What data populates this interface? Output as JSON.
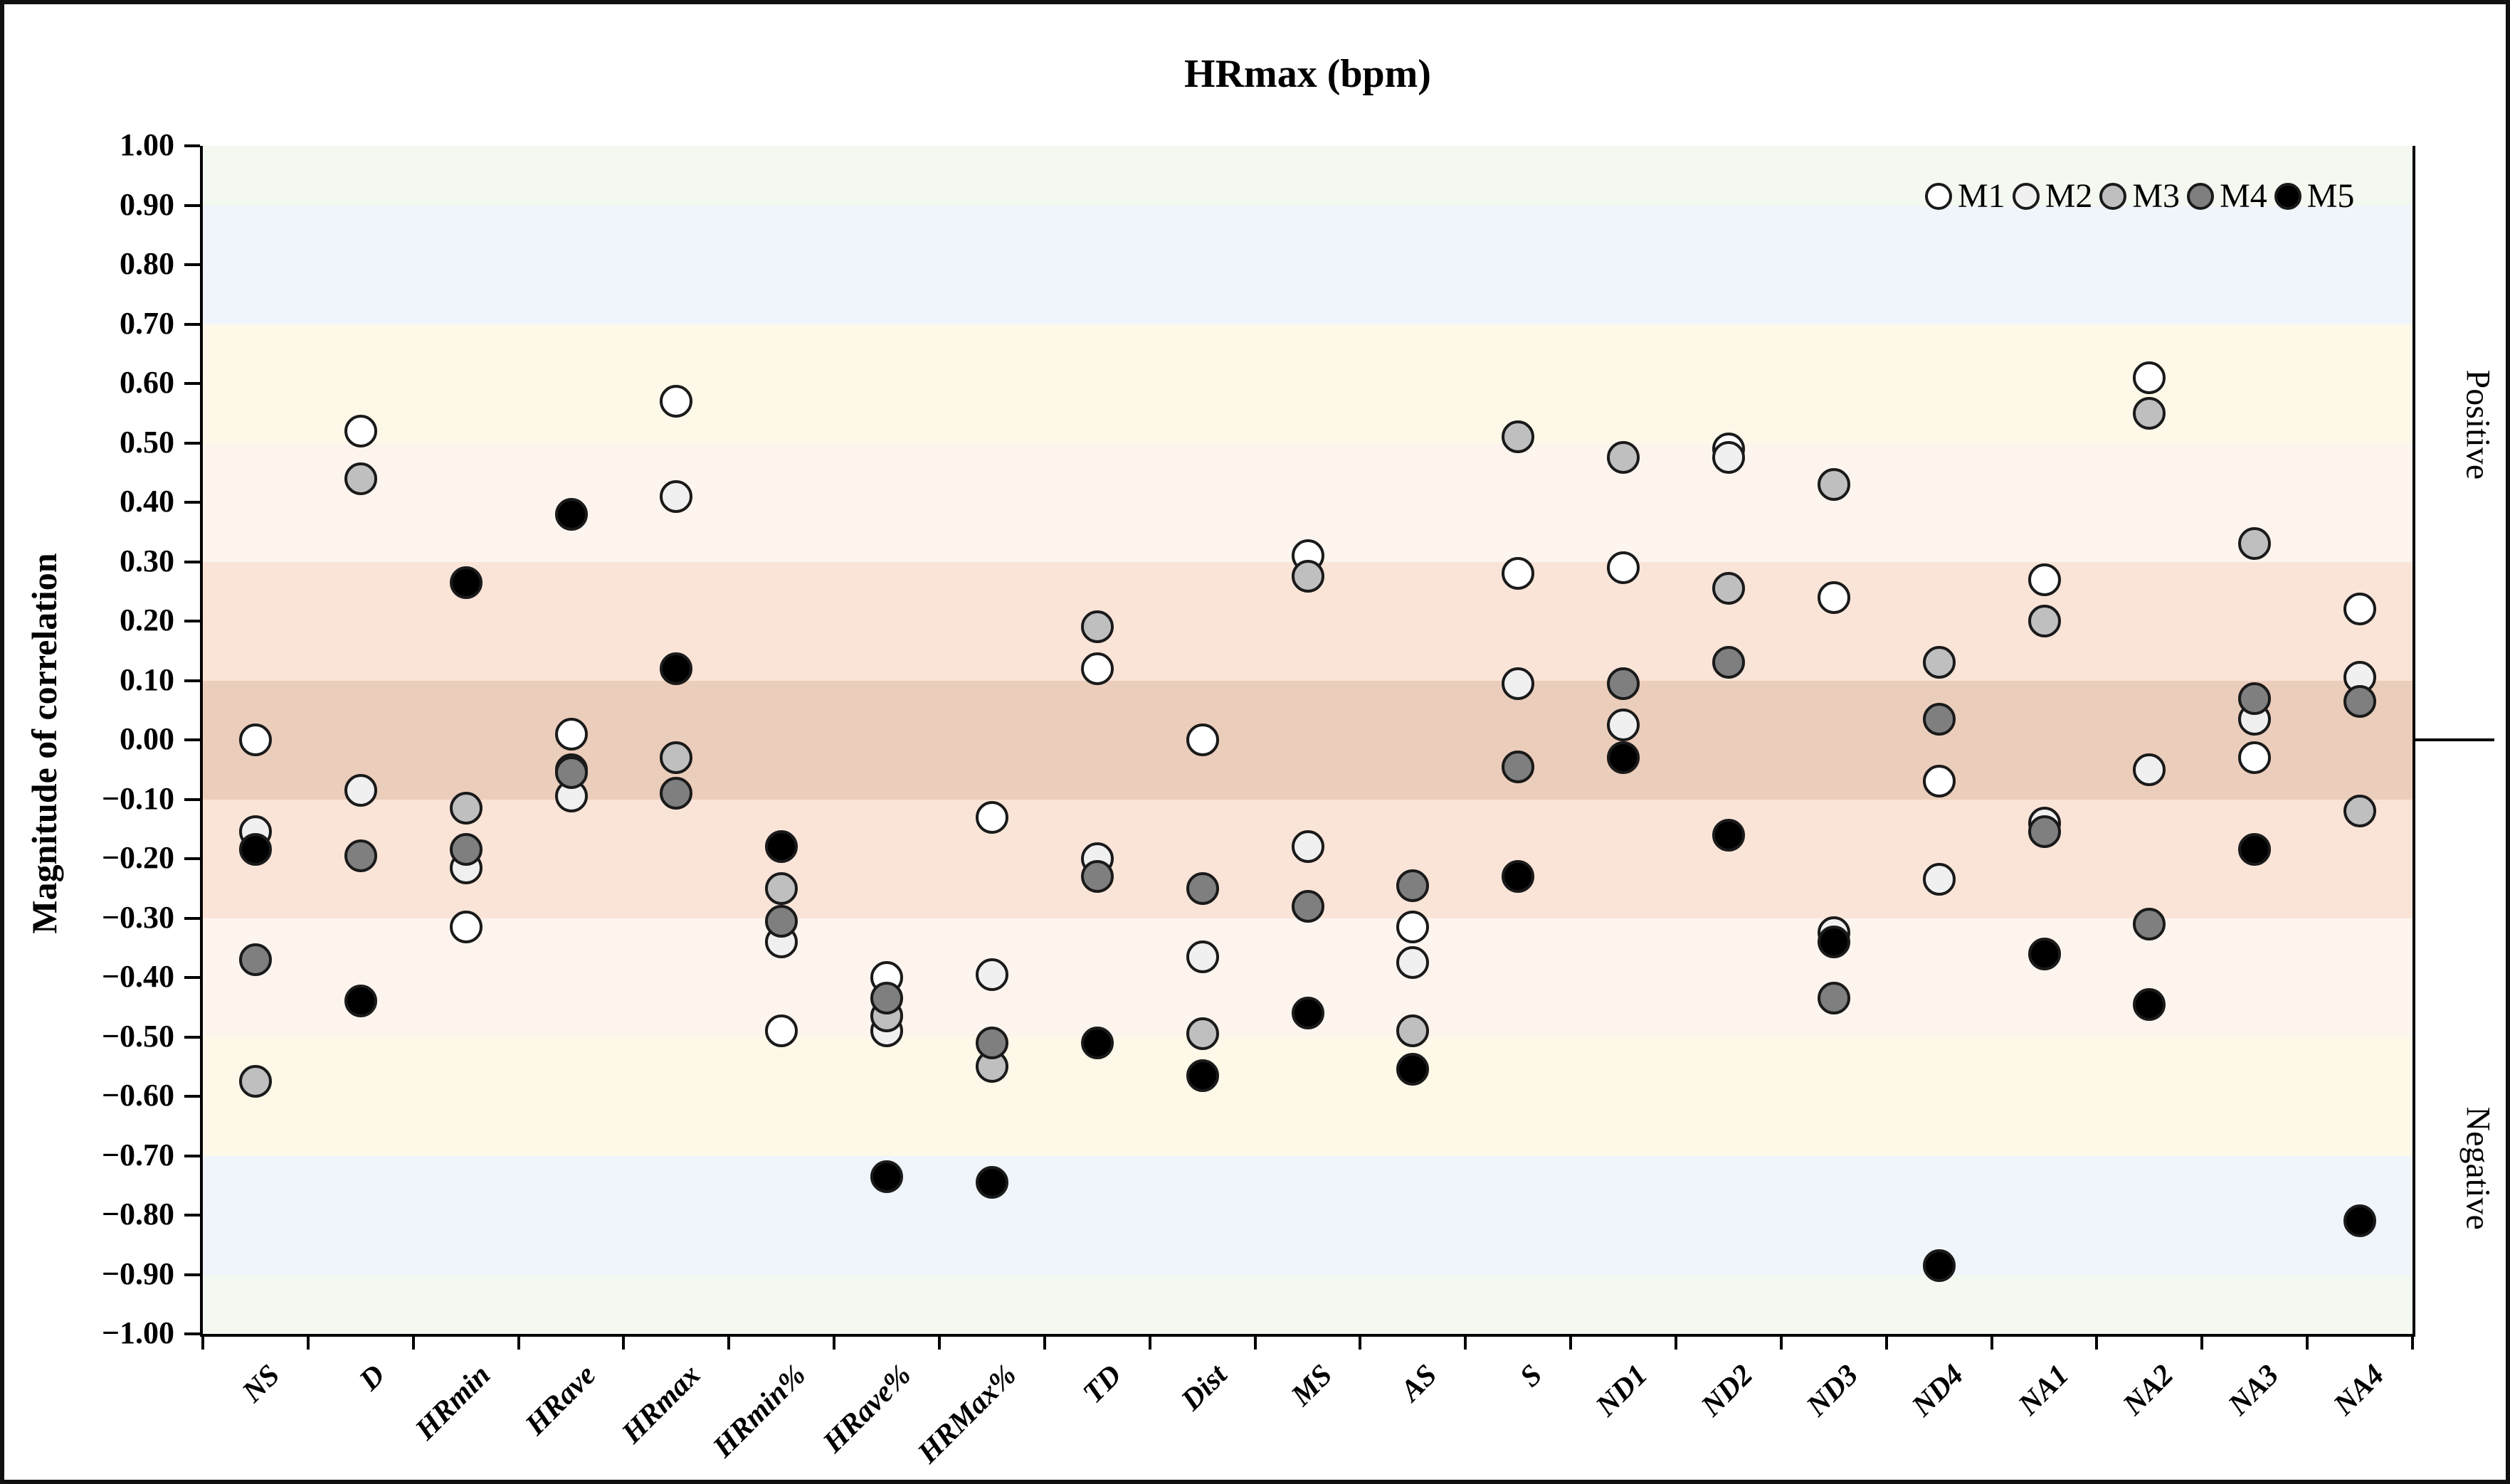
{
  "chart_data": {
    "type": "scatter",
    "title": "HRmax (bpm)",
    "ylabel": "Magnitude of correlation",
    "ylim": [
      -1.0,
      1.0
    ],
    "ytick_step": 0.1,
    "yticks": [
      "1.00",
      "0.90",
      "0.80",
      "0.70",
      "0.60",
      "0.50",
      "0.40",
      "0.30",
      "0.20",
      "0.10",
      "0.00",
      "−0.10",
      "−0.20",
      "−0.30",
      "−0.40",
      "−0.50",
      "−0.60",
      "−0.70",
      "−0.80",
      "−0.90",
      "−1.00"
    ],
    "grid": false,
    "legend_position": "top-right-inside",
    "right_axis_labels": {
      "positive": "Positive",
      "negative": "Negative"
    },
    "categories": [
      "NS",
      "D",
      "HRmin",
      "HRave",
      "HRmax",
      "HRmin%",
      "HRave%",
      "HRMax%",
      "TD",
      "Dist",
      "MS",
      "AS",
      "S",
      "ND1",
      "ND2",
      "ND3",
      "ND4",
      "NA1",
      "NA2",
      "NA3",
      "NA4"
    ],
    "series": [
      {
        "name": "M1",
        "fill": "#ffffff",
        "values": [
          0.0,
          0.52,
          -0.315,
          0.01,
          0.57,
          -0.49,
          -0.4,
          -0.13,
          0.12,
          0.0,
          0.31,
          -0.315,
          0.28,
          0.29,
          0.49,
          0.24,
          -0.07,
          0.27,
          0.61,
          -0.03,
          0.22
        ]
      },
      {
        "name": "M2",
        "fill": "#f0f0f0",
        "values": [
          -0.155,
          -0.085,
          -0.215,
          -0.095,
          0.41,
          -0.34,
          -0.49,
          -0.395,
          -0.2,
          -0.365,
          -0.18,
          -0.375,
          0.095,
          0.025,
          0.475,
          -0.325,
          -0.235,
          -0.14,
          -0.05,
          0.035,
          0.105
        ]
      },
      {
        "name": "M3",
        "fill": "#bfbfbf",
        "values": [
          -0.575,
          0.44,
          -0.115,
          -0.05,
          -0.03,
          -0.25,
          -0.465,
          -0.55,
          0.19,
          -0.495,
          0.275,
          -0.49,
          0.51,
          0.475,
          0.255,
          0.43,
          0.13,
          0.2,
          0.55,
          0.33,
          -0.12
        ]
      },
      {
        "name": "M4",
        "fill": "#7f7f7f",
        "values": [
          -0.37,
          -0.195,
          -0.185,
          -0.055,
          -0.09,
          -0.305,
          -0.435,
          -0.51,
          -0.23,
          -0.25,
          -0.28,
          -0.245,
          -0.045,
          0.095,
          0.13,
          -0.435,
          0.035,
          -0.155,
          -0.31,
          0.07,
          0.065
        ]
      },
      {
        "name": "M5",
        "fill": "#000000",
        "values": [
          -0.185,
          -0.44,
          0.265,
          0.38,
          0.12,
          -0.18,
          -0.735,
          -0.745,
          -0.51,
          -0.565,
          -0.46,
          -0.555,
          -0.23,
          -0.03,
          -0.16,
          -0.34,
          -0.885,
          -0.36,
          -0.445,
          -0.185,
          -0.81
        ]
      }
    ],
    "bands": [
      {
        "from": 1.0,
        "to": 0.9,
        "color": "#f3f8f0"
      },
      {
        "from": 0.9,
        "to": 0.7,
        "color": "#f0f5fb"
      },
      {
        "from": 0.7,
        "to": 0.5,
        "color": "#fdf8e8"
      },
      {
        "from": 0.5,
        "to": 0.3,
        "color": "#fdf4ee"
      },
      {
        "from": 0.3,
        "to": 0.1,
        "color": "#fae4d8"
      },
      {
        "from": 0.1,
        "to": -0.1,
        "color": "#ebcdbb"
      },
      {
        "from": -0.1,
        "to": -0.3,
        "color": "#fae4d8"
      },
      {
        "from": -0.3,
        "to": -0.5,
        "color": "#fdf4ee"
      },
      {
        "from": -0.5,
        "to": -0.7,
        "color": "#fdf8e8"
      },
      {
        "from": -0.7,
        "to": -0.9,
        "color": "#f0f5fb"
      },
      {
        "from": -0.9,
        "to": -1.0,
        "color": "#f3f8f0"
      }
    ],
    "marker_outline_color": "#1a1a1a"
  }
}
